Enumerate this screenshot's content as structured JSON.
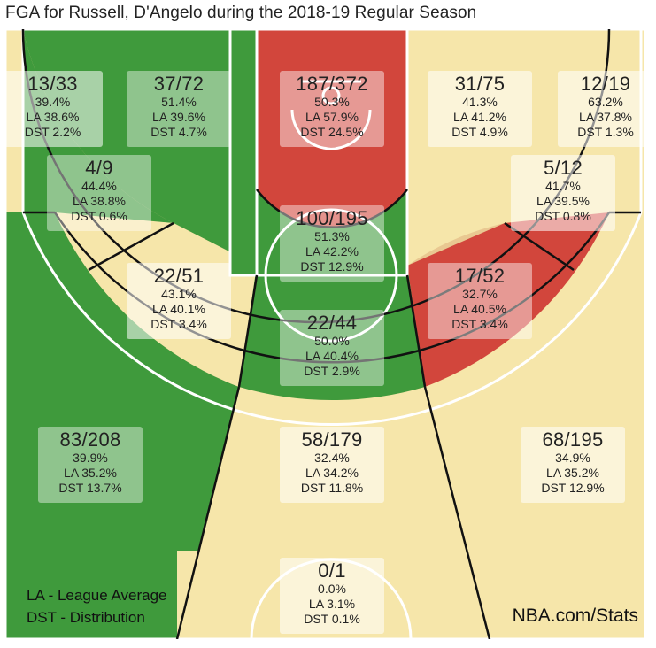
{
  "title": "FGA for Russell, D'Angelo during the 2018-19 Regular Season",
  "legend": {
    "la": "LA - League Average",
    "dst": "DST - Distribution"
  },
  "source": "NBA.com/Stats",
  "colors": {
    "above": "#d2463c",
    "below": "#3f9a3c",
    "neutral": "#f6e6aa",
    "floor": "#e9c891"
  },
  "chart_data": {
    "type": "table",
    "zones": [
      {
        "id": "left-corner-3",
        "frac": "13/33",
        "pct": "39.4%",
        "la": "LA 38.6%",
        "dst": "DST 2.2%",
        "status": "neutral"
      },
      {
        "id": "left-baseline-mid",
        "frac": "37/72",
        "pct": "51.4%",
        "la": "LA 39.6%",
        "dst": "DST 4.7%",
        "status": "below"
      },
      {
        "id": "restricted-area",
        "frac": "187/372",
        "pct": "50.3%",
        "la": "LA 57.9%",
        "dst": "DST 24.5%",
        "status": "above"
      },
      {
        "id": "right-baseline-mid",
        "frac": "31/75",
        "pct": "41.3%",
        "la": "LA 41.2%",
        "dst": "DST 4.9%",
        "status": "neutral"
      },
      {
        "id": "right-corner-3",
        "frac": "12/19",
        "pct": "63.2%",
        "la": "LA 37.8%",
        "dst": "DST 1.3%",
        "status": "neutral"
      },
      {
        "id": "left-elbow-mid",
        "frac": "4/9",
        "pct": "44.4%",
        "la": "LA 38.8%",
        "dst": "DST 0.6%",
        "status": "below"
      },
      {
        "id": "right-elbow-mid",
        "frac": "5/12",
        "pct": "41.7%",
        "la": "LA 39.5%",
        "dst": "DST 0.8%",
        "status": "neutral"
      },
      {
        "id": "paint-non-ra",
        "frac": "100/195",
        "pct": "51.3%",
        "la": "LA 42.2%",
        "dst": "DST 12.9%",
        "status": "below"
      },
      {
        "id": "left-wing-mid",
        "frac": "22/51",
        "pct": "43.1%",
        "la": "LA 40.1%",
        "dst": "DST 3.4%",
        "status": "neutral"
      },
      {
        "id": "right-wing-mid",
        "frac": "17/52",
        "pct": "32.7%",
        "la": "LA 40.5%",
        "dst": "DST 3.4%",
        "status": "above"
      },
      {
        "id": "top-key-mid",
        "frac": "22/44",
        "pct": "50.0%",
        "la": "LA 40.4%",
        "dst": "DST 2.9%",
        "status": "below"
      },
      {
        "id": "left-wing-3",
        "frac": "83/208",
        "pct": "39.9%",
        "la": "LA 35.2%",
        "dst": "DST 13.7%",
        "status": "below"
      },
      {
        "id": "top-key-3",
        "frac": "58/179",
        "pct": "32.4%",
        "la": "LA 34.2%",
        "dst": "DST 11.8%",
        "status": "neutral"
      },
      {
        "id": "right-wing-3",
        "frac": "68/195",
        "pct": "34.9%",
        "la": "LA 35.2%",
        "dst": "DST 12.9%",
        "status": "neutral"
      },
      {
        "id": "backcourt",
        "frac": "0/1",
        "pct": "0.0%",
        "la": "LA 3.1%",
        "dst": "DST 0.1%",
        "status": "neutral"
      }
    ]
  }
}
